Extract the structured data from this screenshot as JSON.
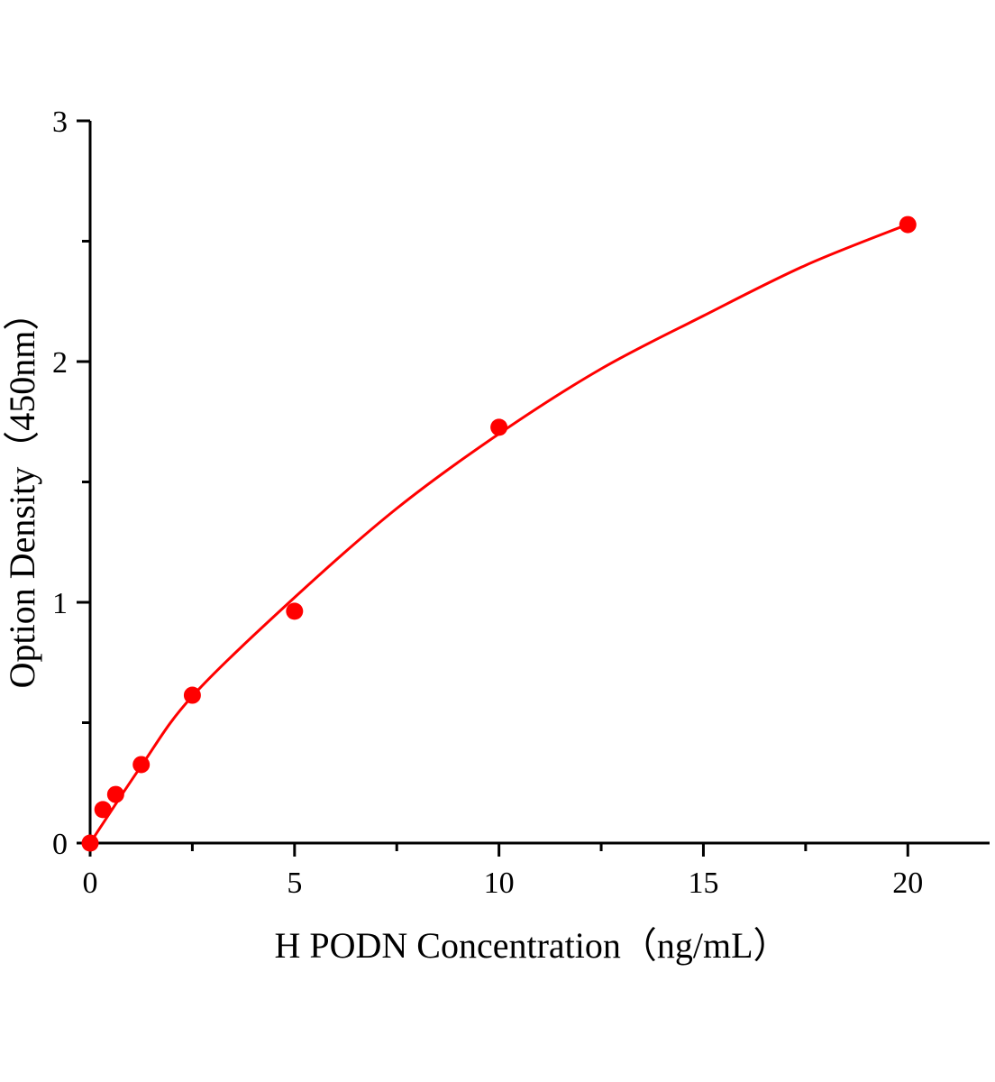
{
  "chart_data": {
    "type": "scatter",
    "title": "",
    "xlabel": "H PODN Concentration（ng/mL）",
    "ylabel": "Option Density（450nm）",
    "xlim": [
      0,
      22
    ],
    "ylim": [
      0,
      3
    ],
    "xticks": [
      0,
      5,
      10,
      15,
      20
    ],
    "yticks": [
      0,
      1,
      2,
      3
    ],
    "x_minor_step": 2.5,
    "y_minor_step": 0.5,
    "grid": false,
    "color": "#ff0000",
    "points": {
      "x": [
        0,
        0.3125,
        0.625,
        1.25,
        2.5,
        5,
        10,
        20
      ],
      "y": [
        0.0,
        0.139,
        0.202,
        0.326,
        0.614,
        0.963,
        1.727,
        2.569
      ]
    },
    "fit_curve": {
      "x": [
        0,
        1.25,
        2.5,
        5,
        7.5,
        10,
        12.5,
        15,
        17.5,
        20
      ],
      "y": [
        0,
        0.32,
        0.61,
        1.02,
        1.39,
        1.7,
        1.97,
        2.19,
        2.4,
        2.57
      ]
    }
  }
}
